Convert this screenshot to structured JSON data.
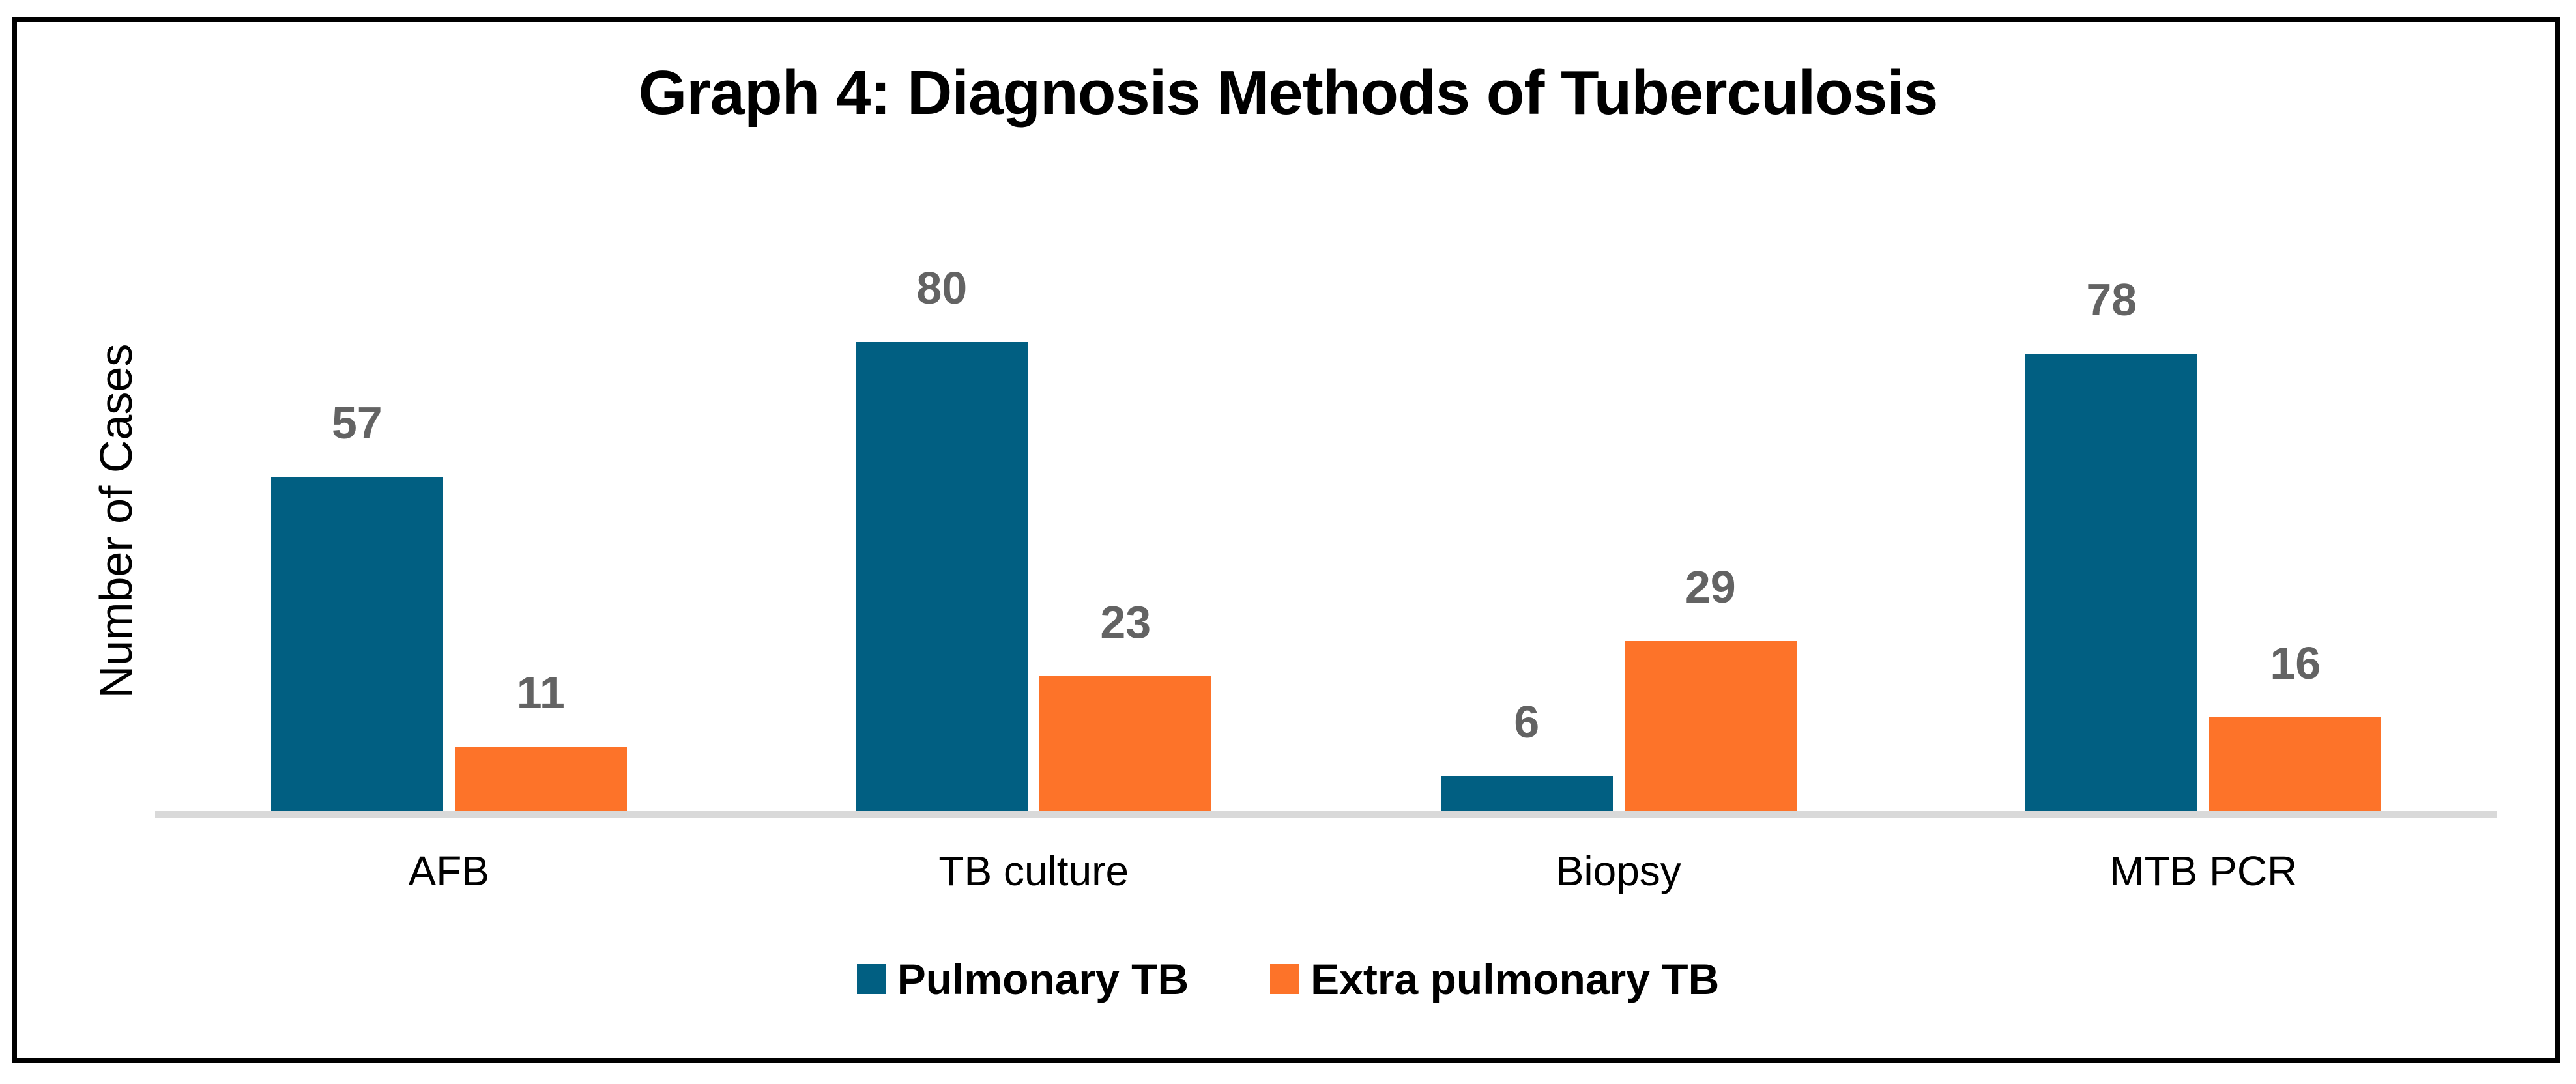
{
  "chart_data": {
    "type": "bar",
    "title": "Graph 4: Diagnosis Methods of Tuberculosis",
    "categories": [
      "AFB",
      "TB culture",
      "Biopsy",
      "MTB PCR"
    ],
    "series": [
      {
        "name": "Pulmonary TB",
        "color": "#015F82",
        "values": [
          57,
          80,
          6,
          78
        ]
      },
      {
        "name": "Extra pulmonary TB",
        "color": "#FD7329",
        "values": [
          11,
          23,
          29,
          16
        ]
      }
    ],
    "xlabel": "",
    "ylabel": "Number of Cases",
    "ylim": [
      0,
      88
    ],
    "grid": false,
    "y_axis_ticks_visible": false,
    "legend_position": "bottom",
    "data_labels": true,
    "data_label_color": "#636363",
    "axis_line_color": "#D9D9D9",
    "border_color": "#000000",
    "background_color": "#FFFFFF"
  },
  "legend": {
    "items": [
      {
        "label": "Pulmonary TB",
        "color": "#015F82"
      },
      {
        "label": "Extra pulmonary TB",
        "color": "#FD7329"
      }
    ]
  }
}
